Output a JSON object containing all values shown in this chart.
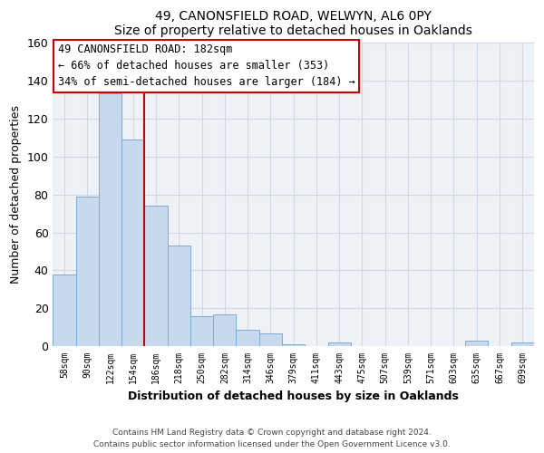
{
  "title1": "49, CANONSFIELD ROAD, WELWYN, AL6 0PY",
  "title2": "Size of property relative to detached houses in Oaklands",
  "xlabel": "Distribution of detached houses by size in Oaklands",
  "ylabel": "Number of detached properties",
  "bar_labels": [
    "58sqm",
    "90sqm",
    "122sqm",
    "154sqm",
    "186sqm",
    "218sqm",
    "250sqm",
    "282sqm",
    "314sqm",
    "346sqm",
    "379sqm",
    "411sqm",
    "443sqm",
    "475sqm",
    "507sqm",
    "539sqm",
    "571sqm",
    "603sqm",
    "635sqm",
    "667sqm",
    "699sqm"
  ],
  "bar_values": [
    38,
    79,
    133,
    109,
    74,
    53,
    16,
    17,
    9,
    7,
    1,
    0,
    2,
    0,
    0,
    0,
    0,
    0,
    3,
    0,
    2
  ],
  "bar_color": "#c8d9ed",
  "bar_edge_color": "#7fabd0",
  "vline_color": "#cc0000",
  "ylim": [
    0,
    160
  ],
  "yticks": [
    0,
    20,
    40,
    60,
    80,
    100,
    120,
    140,
    160
  ],
  "annotation_title": "49 CANONSFIELD ROAD: 182sqm",
  "annotation_line1": "← 66% of detached houses are smaller (353)",
  "annotation_line2": "34% of semi-detached houses are larger (184) →",
  "footer1": "Contains HM Land Registry data © Crown copyright and database right 2024.",
  "footer2": "Contains public sector information licensed under the Open Government Licence v3.0.",
  "bg_color": "#eef2f7",
  "grid_color": "#d0d8e4"
}
